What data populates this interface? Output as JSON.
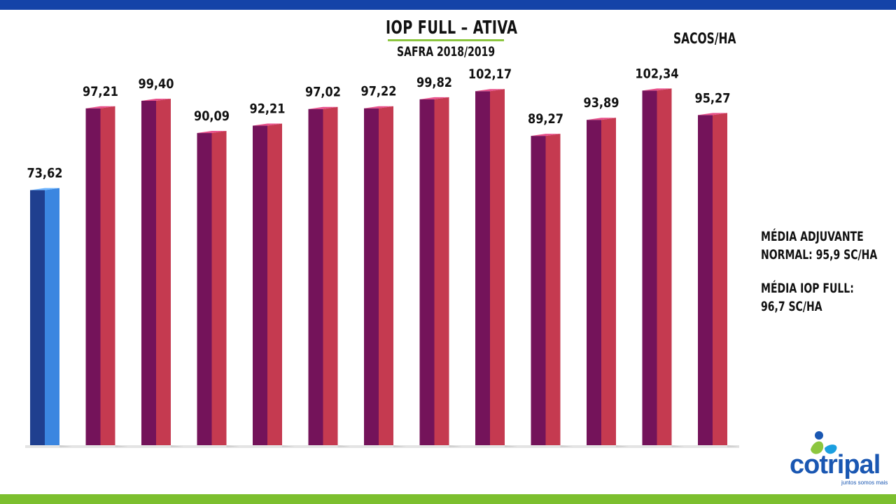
{
  "header": {
    "title": "IOP FULL – ATIVA",
    "subtitle": "SAFRA 2018/2019",
    "unit": "SACOS/HA"
  },
  "notes": {
    "adjuvante_line1": "MÉDIA ADJUVANTE",
    "adjuvante_line2": "NORMAL: 95,9 SC/HA",
    "iop_line1": "MÉDIA IOP FULL:",
    "iop_line2": "96,7 SC/HA"
  },
  "logo": {
    "name": "cotripal",
    "tagline": "juntos somos mais"
  },
  "colors": {
    "top_bar": "#1443a8",
    "bottom_bar": "#7cbf2e",
    "first_bar_front": "#1f3f8f",
    "first_bar_side": "#3b86e0",
    "bar_front": "#74135a",
    "bar_side": "#c53a50",
    "bar_top": "#e8508a"
  },
  "chart_data": {
    "type": "bar",
    "title": "IOP FULL – ATIVA",
    "subtitle": "SAFRA 2018/2019",
    "ylabel": "SACOS/HA",
    "ylim": [
      0,
      110
    ],
    "values": [
      73.62,
      97.21,
      99.4,
      90.09,
      92.21,
      97.02,
      97.22,
      99.82,
      102.17,
      89.27,
      93.89,
      102.34,
      95.27
    ],
    "labels": [
      "73,62",
      "97,21",
      "99,40",
      "90,09",
      "92,21",
      "97,02",
      "97,22",
      "99,82",
      "102,17",
      "89,27",
      "93,89",
      "102,34",
      "95,27"
    ],
    "highlight_index": 0,
    "grid": false,
    "legend": "none"
  }
}
